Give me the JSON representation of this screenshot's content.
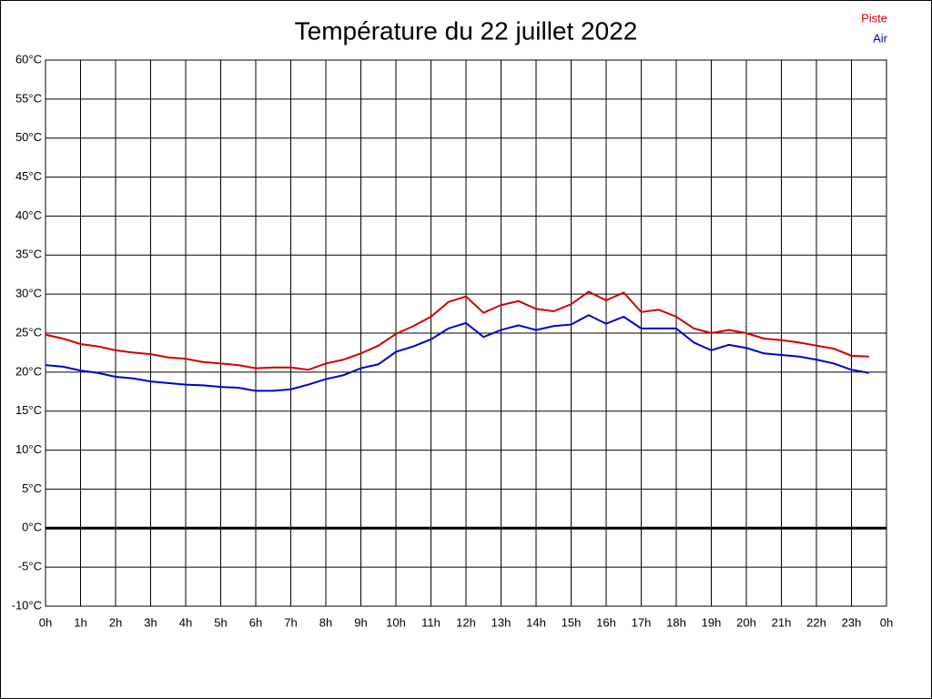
{
  "chart_data": {
    "type": "line",
    "title": "Température du 22 juillet 2022",
    "x": [
      0,
      0.5,
      1,
      1.5,
      2,
      2.5,
      3,
      3.5,
      4,
      4.5,
      5,
      5.5,
      6,
      6.5,
      7,
      7.5,
      8,
      8.5,
      9,
      9.5,
      10,
      10.5,
      11,
      11.5,
      12,
      12.5,
      13,
      13.5,
      14,
      14.5,
      15,
      15.5,
      16,
      16.5,
      17,
      17.5,
      18,
      18.5,
      19,
      19.5,
      20,
      20.5,
      21,
      21.5,
      22,
      22.5,
      23,
      23.5
    ],
    "series": [
      {
        "name": "Piste",
        "color": "#d00000",
        "values": [
          24.8,
          24.3,
          23.6,
          23.3,
          22.8,
          22.5,
          22.3,
          21.9,
          21.7,
          21.3,
          21.1,
          20.9,
          20.5,
          20.6,
          20.6,
          20.3,
          21.1,
          21.6,
          22.4,
          23.4,
          24.9,
          25.9,
          27.1,
          29.0,
          29.7,
          27.6,
          28.6,
          29.1,
          28.1,
          27.8,
          28.7,
          30.3,
          29.2,
          30.2,
          27.7,
          28.0,
          27.1,
          25.6,
          25.0,
          25.4,
          25.0,
          24.3,
          24.1,
          23.8,
          23.4,
          23.0,
          22.1,
          22.0
        ]
      },
      {
        "name": "Air",
        "color": "#0000c8",
        "values": [
          20.9,
          20.7,
          20.2,
          19.9,
          19.4,
          19.2,
          18.8,
          18.6,
          18.4,
          18.3,
          18.1,
          18.0,
          17.6,
          17.6,
          17.8,
          18.4,
          19.1,
          19.6,
          20.5,
          21.0,
          22.6,
          23.3,
          24.2,
          25.6,
          26.3,
          24.5,
          25.4,
          26.0,
          25.4,
          25.9,
          26.1,
          27.3,
          26.2,
          27.1,
          25.6,
          25.6,
          25.6,
          23.8,
          22.8,
          23.5,
          23.1,
          22.4,
          22.2,
          22.0,
          21.6,
          21.1,
          20.3,
          19.9
        ]
      }
    ],
    "xlim": [
      0,
      24
    ],
    "xticks": [
      {
        "value": 0,
        "label": "0h"
      },
      {
        "value": 1,
        "label": "1h"
      },
      {
        "value": 2,
        "label": "2h"
      },
      {
        "value": 3,
        "label": "3h"
      },
      {
        "value": 4,
        "label": "4h"
      },
      {
        "value": 5,
        "label": "5h"
      },
      {
        "value": 6,
        "label": "6h"
      },
      {
        "value": 7,
        "label": "7h"
      },
      {
        "value": 8,
        "label": "8h"
      },
      {
        "value": 9,
        "label": "9h"
      },
      {
        "value": 10,
        "label": "10h"
      },
      {
        "value": 11,
        "label": "11h"
      },
      {
        "value": 12,
        "label": "12h"
      },
      {
        "value": 13,
        "label": "13h"
      },
      {
        "value": 14,
        "label": "14h"
      },
      {
        "value": 15,
        "label": "15h"
      },
      {
        "value": 16,
        "label": "16h"
      },
      {
        "value": 17,
        "label": "17h"
      },
      {
        "value": 18,
        "label": "18h"
      },
      {
        "value": 19,
        "label": "19h"
      },
      {
        "value": 20,
        "label": "20h"
      },
      {
        "value": 21,
        "label": "21h"
      },
      {
        "value": 22,
        "label": "22h"
      },
      {
        "value": 23,
        "label": "23h"
      },
      {
        "value": 24,
        "label": "0h"
      }
    ],
    "ylim": [
      -10,
      60
    ],
    "yticks": [
      {
        "value": -10,
        "label": "-10°C"
      },
      {
        "value": -5,
        "label": "-5°C"
      },
      {
        "value": 0,
        "label": "0°C"
      },
      {
        "value": 5,
        "label": "5°C"
      },
      {
        "value": 10,
        "label": "10°C"
      },
      {
        "value": 15,
        "label": "15°C"
      },
      {
        "value": 20,
        "label": "20°C"
      },
      {
        "value": 25,
        "label": "25°C"
      },
      {
        "value": 30,
        "label": "30°C"
      },
      {
        "value": 35,
        "label": "35°C"
      },
      {
        "value": 40,
        "label": "40°C"
      },
      {
        "value": 45,
        "label": "45°C"
      },
      {
        "value": 50,
        "label": "50°C"
      },
      {
        "value": 55,
        "label": "55°C"
      },
      {
        "value": 60,
        "label": "60°C"
      }
    ],
    "grid": true,
    "zero_line": true,
    "legend": "top-right"
  }
}
